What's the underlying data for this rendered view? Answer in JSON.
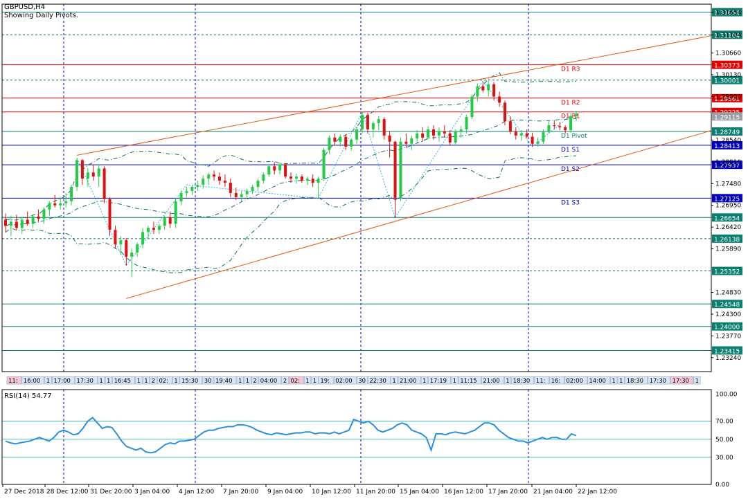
{
  "header": {
    "symbol": "GBPUSD,H4",
    "subtitle": "Showing Daily Pivots."
  },
  "colors": {
    "bull": "#22cc44",
    "bear": "#e01010",
    "axis": "#000080",
    "grid": "#0000cc",
    "resistance": "#e00000",
    "support": "#0000bb",
    "teal": "#0a7f6f",
    "trend": "#e05a1a",
    "band": "#0a6f5f",
    "rsi": "#2a8fe0",
    "price_box": "#e00000",
    "price_box_support": "#0000bb",
    "price_box_teal": "#0a7f6f"
  },
  "chart_data": [
    {
      "type": "candlestick",
      "ylim": [
        1.229,
        1.3185
      ],
      "y_ticks": [
        1.3165,
        1.311,
        1.3066,
        1.3013,
        1.296,
        1.2854,
        1.2801,
        1.2748,
        1.2695,
        1.2642,
        1.2589,
        1.2483,
        1.243,
        1.2377,
        1.2324
      ],
      "y_tick_labels": [
        "1.31654",
        "1.31104",
        "1.30660",
        "1.30130",
        "1.29600",
        "1.28540",
        "1.28010",
        "1.27480",
        "1.26950",
        "1.26420",
        "1.25890",
        "1.24830",
        "1.24300",
        "1.23770",
        "1.23240"
      ],
      "x_labels": [
        "27 Dec 2018",
        "28 Dec 12:00",
        "31 Dec 20:00",
        "3 Jan 04:00",
        "4 Jan 12:00",
        "7 Jan 20:00",
        "9 Jan 04:00",
        "10 Jan 12:00",
        "11 Jan 20:00",
        "15 Jan 04:00",
        "16 Jan 12:00",
        "17 Jan 20:00",
        "21 Jan 04:00",
        "22 Jan 12:00"
      ],
      "current_price": 1.29115,
      "current_price_label": "1.29115",
      "levels": [
        {
          "label": "D1 R3",
          "price": 1.30373,
          "price_label": "1.30373",
          "kind": "resistance"
        },
        {
          "label": "D1 R2",
          "price": 1.29561,
          "price_label": "1.29561",
          "kind": "resistance"
        },
        {
          "label": "D1 R1",
          "price": 1.29225,
          "price_label": "1.29225",
          "kind": "resistance"
        },
        {
          "label": "D1 Pivot",
          "price": 1.28749,
          "price_label": "1.28749",
          "kind": "pivot"
        },
        {
          "label": "D1 S1",
          "price": 1.28413,
          "price_label": "1.28413",
          "kind": "support"
        },
        {
          "label": "D1 S2",
          "price": 1.27937,
          "price_label": "1.27937",
          "kind": "support"
        },
        {
          "label": "D1 S3",
          "price": 1.27125,
          "price_label": "1.27125",
          "kind": "support"
        }
      ],
      "horizontal_lines": [
        {
          "price": 1.31654,
          "label": "1.31654",
          "style": "solid"
        },
        {
          "price": 1.31104,
          "label": "1.31104",
          "style": "dotted"
        },
        {
          "price": 1.30001,
          "label": "1.30001",
          "style": "dotted"
        },
        {
          "price": 1.26654,
          "label": "1.26654",
          "style": "solid"
        },
        {
          "price": 1.26138,
          "label": "1.26138",
          "style": "dotted"
        },
        {
          "price": 1.25352,
          "label": "1.25352",
          "style": "dotted"
        },
        {
          "price": 1.24548,
          "label": "1.24548",
          "style": "solid"
        },
        {
          "price": 1.24,
          "label": "1.24000",
          "style": "solid"
        },
        {
          "price": 1.23415,
          "label": "1.23415",
          "style": "solid"
        }
      ],
      "time_labels": [
        "11:",
        "16:00",
        "1",
        "17:00",
        "17:30",
        "1",
        "1",
        "16:45",
        "1",
        "1",
        "2",
        "02:",
        "1",
        "15:30",
        "30",
        "19:40",
        "1",
        "1",
        "2",
        "04:00",
        "2",
        "02:",
        "1",
        "1",
        "19:",
        "02:00",
        "30",
        "22:30",
        "1",
        "21:00",
        "1",
        "17:19",
        "1",
        "11:15",
        "21:00",
        "1",
        "18:30",
        "11:",
        "16:",
        "02:00",
        "14:00",
        "1",
        "1",
        "18:30",
        "17:30",
        "17:30",
        "1",
        "22:30"
      ],
      "candles": [
        [
          1.266,
          1.2675,
          1.263,
          1.2645
        ],
        [
          1.2645,
          1.267,
          1.262,
          1.2655
        ],
        [
          1.2655,
          1.2672,
          1.2635,
          1.264
        ],
        [
          1.264,
          1.2665,
          1.2625,
          1.266
        ],
        [
          1.266,
          1.268,
          1.2645,
          1.265
        ],
        [
          1.265,
          1.2672,
          1.264,
          1.2668
        ],
        [
          1.2668,
          1.2685,
          1.2655,
          1.2662
        ],
        [
          1.2662,
          1.269,
          1.265,
          1.2685
        ],
        [
          1.2685,
          1.2705,
          1.267,
          1.27
        ],
        [
          1.27,
          1.272,
          1.269,
          1.2695
        ],
        [
          1.2695,
          1.2715,
          1.2685,
          1.27
        ],
        [
          1.27,
          1.2725,
          1.269,
          1.2705
        ],
        [
          1.2705,
          1.2745,
          1.2695,
          1.274
        ],
        [
          1.274,
          1.281,
          1.273,
          1.2805
        ],
        [
          1.2805,
          1.2808,
          1.2745,
          1.276
        ],
        [
          1.276,
          1.2785,
          1.274,
          1.2775
        ],
        [
          1.2775,
          1.2795,
          1.2755,
          1.2765
        ],
        [
          1.2765,
          1.2795,
          1.274,
          1.2785
        ],
        [
          1.2785,
          1.279,
          1.27,
          1.271
        ],
        [
          1.271,
          1.2715,
          1.262,
          1.2635
        ],
        [
          1.2635,
          1.2645,
          1.259,
          1.26
        ],
        [
          1.26,
          1.262,
          1.2575,
          1.261
        ],
        [
          1.261,
          1.2615,
          1.2548,
          1.257
        ],
        [
          1.257,
          1.259,
          1.252,
          1.258
        ],
        [
          1.258,
          1.2605,
          1.257,
          1.26
        ],
        [
          1.26,
          1.264,
          1.259,
          1.263
        ],
        [
          1.263,
          1.2645,
          1.2615,
          1.264
        ],
        [
          1.264,
          1.2655,
          1.2625,
          1.2635
        ],
        [
          1.2635,
          1.265,
          1.2625,
          1.2645
        ],
        [
          1.2645,
          1.267,
          1.2635,
          1.2665
        ],
        [
          1.2665,
          1.268,
          1.264,
          1.265
        ],
        [
          1.265,
          1.2712,
          1.264,
          1.2705
        ],
        [
          1.2705,
          1.273,
          1.2695,
          1.2725
        ],
        [
          1.2725,
          1.274,
          1.2715,
          1.273
        ],
        [
          1.273,
          1.2745,
          1.272,
          1.274
        ],
        [
          1.274,
          1.2755,
          1.273,
          1.2745
        ],
        [
          1.2745,
          1.2768,
          1.2735,
          1.276
        ],
        [
          1.276,
          1.2775,
          1.2745,
          1.277
        ],
        [
          1.277,
          1.278,
          1.2755,
          1.2765
        ],
        [
          1.2765,
          1.2775,
          1.2745,
          1.2755
        ],
        [
          1.2755,
          1.277,
          1.274,
          1.275
        ],
        [
          1.275,
          1.276,
          1.2715,
          1.2725
        ],
        [
          1.2725,
          1.2738,
          1.2708,
          1.2715
        ],
        [
          1.2715,
          1.273,
          1.2705,
          1.2722
        ],
        [
          1.2722,
          1.2735,
          1.2712,
          1.273
        ],
        [
          1.273,
          1.2745,
          1.2722,
          1.274
        ],
        [
          1.274,
          1.276,
          1.273,
          1.2755
        ],
        [
          1.2755,
          1.2775,
          1.2748,
          1.277
        ],
        [
          1.277,
          1.2795,
          1.2765,
          1.279
        ],
        [
          1.279,
          1.28,
          1.277,
          1.278
        ],
        [
          1.278,
          1.28,
          1.277,
          1.2795
        ],
        [
          1.2795,
          1.2798,
          1.276,
          1.2765
        ],
        [
          1.2765,
          1.2775,
          1.275,
          1.276
        ],
        [
          1.276,
          1.2772,
          1.2748,
          1.2765
        ],
        [
          1.2765,
          1.277,
          1.275,
          1.2755
        ],
        [
          1.2755,
          1.2765,
          1.2745,
          1.276
        ],
        [
          1.276,
          1.277,
          1.274,
          1.275
        ],
        [
          1.275,
          1.2765,
          1.2712,
          1.276
        ],
        [
          1.276,
          1.2835,
          1.2755,
          1.283
        ],
        [
          1.283,
          1.2865,
          1.282,
          1.286
        ],
        [
          1.286,
          1.287,
          1.284,
          1.285
        ],
        [
          1.285,
          1.2868,
          1.2838,
          1.2862
        ],
        [
          1.2862,
          1.2868,
          1.283,
          1.2838
        ],
        [
          1.2838,
          1.2858,
          1.2828,
          1.2855
        ],
        [
          1.2855,
          1.2885,
          1.2845,
          1.288
        ],
        [
          1.288,
          1.2922,
          1.287,
          1.2915
        ],
        [
          1.2915,
          1.292,
          1.287,
          1.288
        ],
        [
          1.288,
          1.29,
          1.286,
          1.2895
        ],
        [
          1.2895,
          1.2912,
          1.2878,
          1.2905
        ],
        [
          1.2905,
          1.291,
          1.2855,
          1.2865
        ],
        [
          1.2865,
          1.2875,
          1.2812,
          1.285
        ],
        [
          1.285,
          1.2852,
          1.2665,
          1.2712
        ],
        [
          1.2712,
          1.286,
          1.2705,
          1.285
        ],
        [
          1.285,
          1.287,
          1.2835,
          1.2845
        ],
        [
          1.2845,
          1.2865,
          1.283,
          1.2858
        ],
        [
          1.2858,
          1.2878,
          1.2848,
          1.287
        ],
        [
          1.287,
          1.2885,
          1.285,
          1.286
        ],
        [
          1.286,
          1.2888,
          1.2855,
          1.288
        ],
        [
          1.288,
          1.289,
          1.2855,
          1.2865
        ],
        [
          1.2865,
          1.2885,
          1.285,
          1.2875
        ],
        [
          1.2875,
          1.289,
          1.286,
          1.287
        ],
        [
          1.287,
          1.2878,
          1.284,
          1.2848
        ],
        [
          1.2848,
          1.288,
          1.284,
          1.2875
        ],
        [
          1.2875,
          1.2888,
          1.286,
          1.288
        ],
        [
          1.288,
          1.2915,
          1.287,
          1.291
        ],
        [
          1.291,
          1.2965,
          1.2905,
          1.296
        ],
        [
          1.296,
          1.2992,
          1.2948,
          1.2985
        ],
        [
          1.2985,
          1.2995,
          1.297,
          1.2975
        ],
        [
          1.2975,
          1.2998,
          1.296,
          1.299
        ],
        [
          1.299,
          1.2995,
          1.295,
          1.296
        ],
        [
          1.296,
          1.2972,
          1.2935,
          1.2945
        ],
        [
          1.2945,
          1.295,
          1.289,
          1.29
        ],
        [
          1.29,
          1.2912,
          1.2868,
          1.2875
        ],
        [
          1.2875,
          1.2885,
          1.2855,
          1.2865
        ],
        [
          1.2865,
          1.2878,
          1.2852,
          1.287
        ],
        [
          1.287,
          1.288,
          1.2858,
          1.2862
        ],
        [
          1.2862,
          1.2872,
          1.2838,
          1.2845
        ],
        [
          1.2845,
          1.286,
          1.2838,
          1.285
        ],
        [
          1.285,
          1.288,
          1.2845,
          1.2875
        ],
        [
          1.2875,
          1.29,
          1.287,
          1.289
        ],
        [
          1.289,
          1.2902,
          1.288,
          1.2888
        ],
        [
          1.2888,
          1.2898,
          1.2878,
          1.2885
        ],
        [
          1.2885,
          1.289,
          1.287,
          1.2878
        ],
        [
          1.2878,
          1.292,
          1.2872,
          1.2912
        ],
        [
          1.2912,
          1.2925,
          1.29,
          1.2918
        ]
      ]
    },
    {
      "type": "line",
      "title": "RSI(14) 54.77",
      "ylim": [
        0,
        105
      ],
      "y_ticks": [
        100,
        70,
        50,
        30,
        0
      ],
      "y_tick_labels": [
        "100.00",
        "70.00",
        "50.00",
        "30.00",
        "0.00"
      ],
      "levels": [
        70,
        50,
        30
      ],
      "values": [
        48,
        46,
        45,
        46,
        47,
        48,
        50,
        52,
        50,
        48,
        52,
        58,
        60,
        58,
        55,
        56,
        62,
        70,
        74,
        68,
        62,
        64,
        63,
        56,
        48,
        42,
        40,
        38,
        40,
        36,
        35,
        36,
        40,
        44,
        46,
        45,
        48,
        48,
        49,
        50,
        54,
        58,
        60,
        60,
        62,
        63,
        64,
        64,
        66,
        66,
        65,
        63,
        60,
        58,
        56,
        55,
        57,
        56,
        55,
        56,
        57,
        57,
        58,
        58,
        56,
        57,
        57,
        56,
        58,
        56,
        58,
        60,
        72,
        70,
        68,
        70,
        66,
        60,
        58,
        60,
        62,
        66,
        68,
        66,
        60,
        58,
        56,
        52,
        38,
        56,
        56,
        55,
        57,
        58,
        57,
        56,
        58,
        60,
        64,
        68,
        68,
        66,
        60,
        56,
        52,
        50,
        48,
        48,
        46,
        48,
        50,
        52,
        50,
        52,
        52,
        50,
        50,
        56,
        54
      ]
    }
  ]
}
